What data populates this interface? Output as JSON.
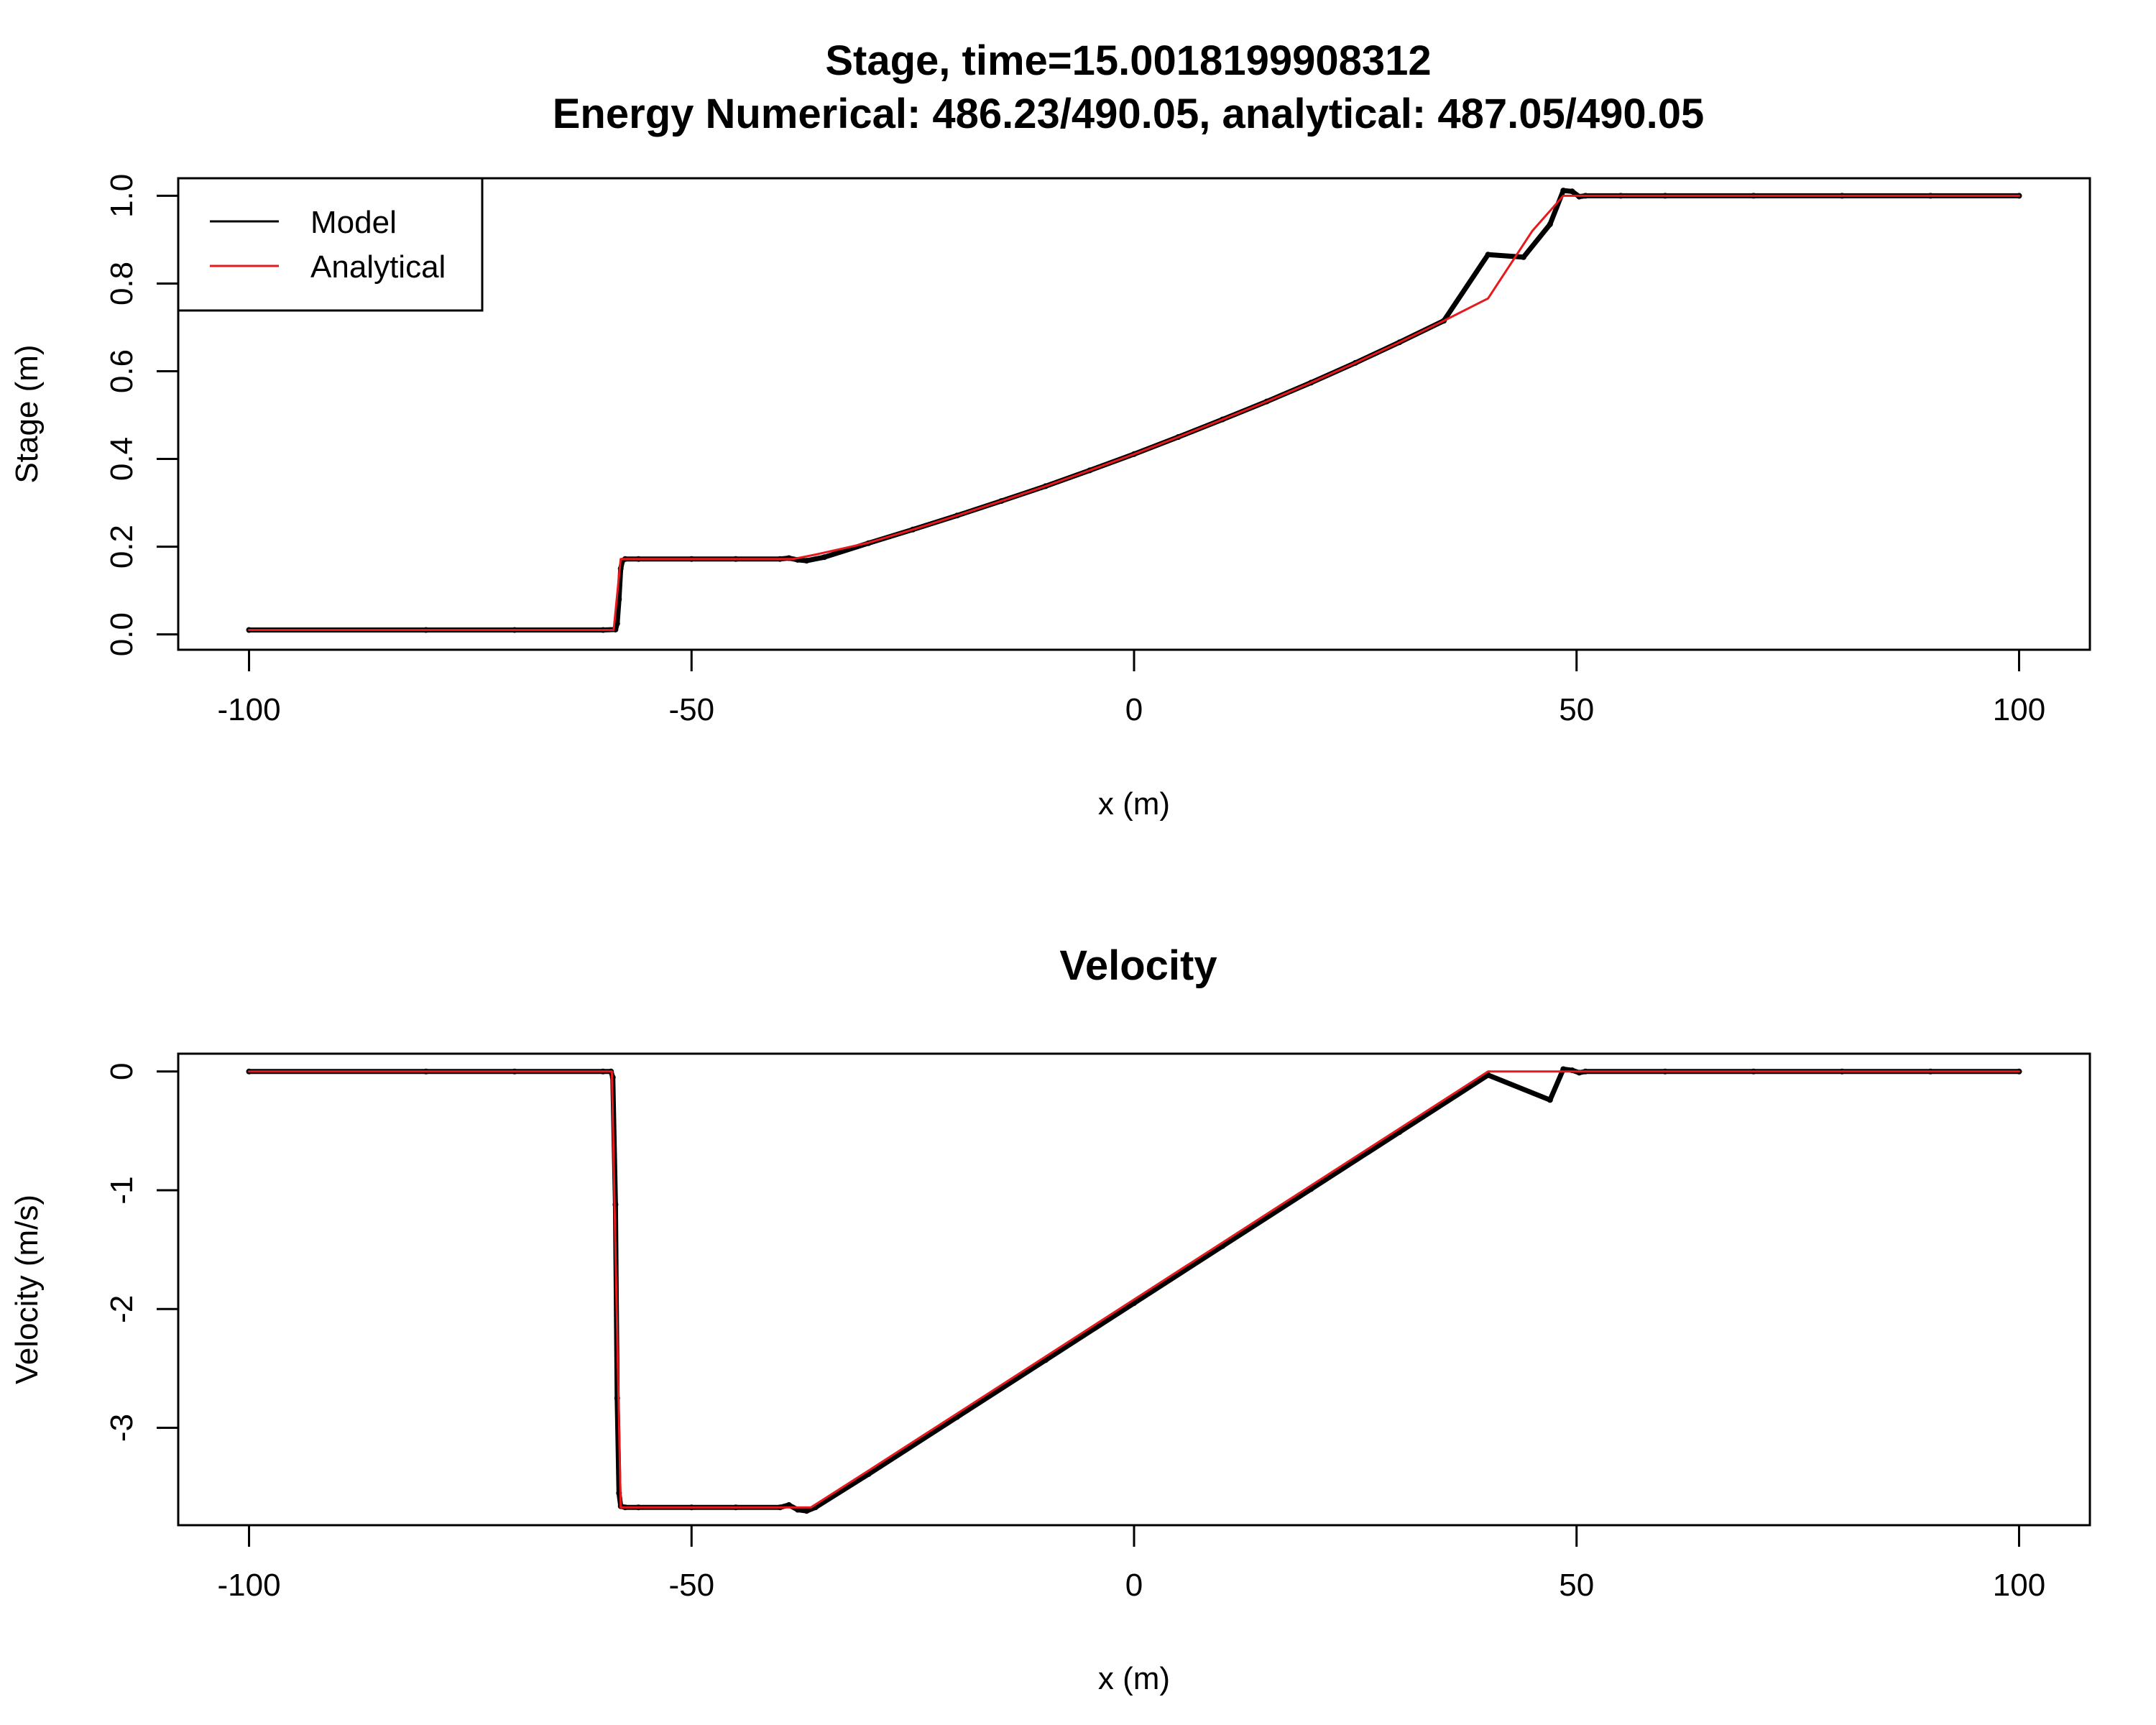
{
  "chart_data": [
    {
      "type": "line",
      "title": "Stage, time=15.0018199908312",
      "subtitle": "Energy Numerical: 486.23/490.05, analytical: 487.05/490.05",
      "xlabel": "x (m)",
      "ylabel": "Stage (m)",
      "xlim": [
        -108,
        108
      ],
      "ylim": [
        -0.035,
        1.04
      ],
      "xticks": [
        -100,
        -50,
        0,
        50,
        100
      ],
      "xtick_labels": [
        "-100",
        "-50",
        "0",
        "50",
        "100"
      ],
      "yticks": [
        0.0,
        0.2,
        0.4,
        0.6,
        0.8,
        1.0
      ],
      "ytick_labels": [
        "0.0",
        "0.2",
        "0.4",
        "0.6",
        "0.8",
        "1.0"
      ],
      "grid": false,
      "legend": {
        "position": "top-left",
        "entries": [
          {
            "label": "Model",
            "color": "#000000"
          },
          {
            "label": "Analytical",
            "color": "#e8191c"
          }
        ]
      },
      "series": [
        {
          "name": "Model",
          "color": "#000000",
          "x": [
            -100,
            -80,
            -70,
            -60,
            -58.6,
            -58.4,
            -58.2,
            -58.0,
            -57.8,
            -57.5,
            -56,
            -50,
            -45,
            -40,
            -39,
            -38,
            -37,
            -35,
            -30,
            -25,
            -20,
            -15,
            -10,
            -5,
            0,
            5,
            10,
            15,
            20,
            25,
            30,
            35,
            40,
            44,
            47,
            48.5,
            49.5,
            50.3,
            51,
            55,
            60,
            70,
            80,
            90,
            100
          ],
          "y": [
            0.01,
            0.01,
            0.01,
            0.01,
            0.011,
            0.025,
            0.08,
            0.15,
            0.168,
            0.172,
            0.172,
            0.172,
            0.172,
            0.172,
            0.174,
            0.17,
            0.168,
            0.176,
            0.208,
            0.239,
            0.271,
            0.304,
            0.338,
            0.374,
            0.411,
            0.45,
            0.49,
            0.531,
            0.574,
            0.619,
            0.666,
            0.715,
            0.866,
            0.86,
            0.935,
            1.012,
            1.01,
            0.998,
            1.0,
            1.0,
            1.0,
            1.0,
            1.0,
            1.0,
            1.0
          ]
        },
        {
          "name": "Analytical",
          "color": "#e8191c",
          "x": [
            -100,
            -80,
            -70,
            -60,
            -58.8,
            -58.0,
            -57.6,
            -56,
            -50,
            -45,
            -40,
            -38.5,
            -36,
            -30,
            -25,
            -20,
            -15,
            -10,
            -5,
            0,
            5,
            10,
            15,
            20,
            25,
            30,
            35,
            40,
            45,
            48.5,
            50,
            60,
            70,
            80,
            90,
            100
          ],
          "y": [
            0.01,
            0.01,
            0.01,
            0.01,
            0.01,
            0.172,
            0.172,
            0.172,
            0.172,
            0.172,
            0.172,
            0.172,
            0.182,
            0.209,
            0.239,
            0.271,
            0.304,
            0.338,
            0.374,
            0.411,
            0.45,
            0.49,
            0.531,
            0.574,
            0.619,
            0.666,
            0.715,
            0.766,
            0.92,
            1.0,
            1.0,
            1.0,
            1.0,
            1.0,
            1.0,
            1.0
          ]
        }
      ]
    },
    {
      "type": "line",
      "title": "Velocity",
      "xlabel": "x (m)",
      "ylabel": "Velocity (m/s)",
      "xlim": [
        -108,
        108
      ],
      "ylim": [
        -3.82,
        0.15
      ],
      "xticks": [
        -100,
        -50,
        0,
        50,
        100
      ],
      "xtick_labels": [
        "-100",
        "-50",
        "0",
        "50",
        "100"
      ],
      "yticks": [
        0,
        -1,
        -2,
        -3
      ],
      "ytick_labels": [
        "0",
        "-1",
        "-2",
        "-3"
      ],
      "grid": false,
      "series": [
        {
          "name": "Model",
          "color": "#000000",
          "x": [
            -100,
            -80,
            -70,
            -60,
            -59.1,
            -58.9,
            -58.6,
            -58.4,
            -58.2,
            -58.0,
            -57.5,
            -56,
            -50,
            -45,
            -40,
            -39,
            -38,
            -37,
            -36,
            -30,
            -20,
            -10,
            0,
            10,
            20,
            30,
            40,
            47,
            48.5,
            49.5,
            50.3,
            51,
            60,
            70,
            80,
            90,
            100
          ],
          "y": [
            0.0,
            0.0,
            0.0,
            0.0,
            0.0,
            -0.05,
            -1.12,
            -2.75,
            -3.55,
            -3.66,
            -3.67,
            -3.67,
            -3.67,
            -3.67,
            -3.67,
            -3.65,
            -3.69,
            -3.7,
            -3.67,
            -3.39,
            -2.91,
            -2.43,
            -1.95,
            -1.47,
            -0.99,
            -0.51,
            -0.03,
            -0.24,
            0.02,
            0.01,
            -0.01,
            0.0,
            0.0,
            0.0,
            0.0,
            0.0,
            0.0
          ]
        },
        {
          "name": "Analytical",
          "color": "#e8191c",
          "x": [
            -100,
            -80,
            -70,
            -60,
            -59.0,
            -58.0,
            -56,
            -50,
            -45,
            -40,
            -36.5,
            -30,
            -20,
            -10,
            0,
            10,
            20,
            30,
            40,
            48.5,
            50,
            60,
            70,
            80,
            90,
            100
          ],
          "y": [
            0.0,
            0.0,
            0.0,
            0.0,
            0.0,
            -3.67,
            -3.67,
            -3.67,
            -3.67,
            -3.67,
            -3.67,
            -3.36,
            -2.88,
            -2.4,
            -1.92,
            -1.44,
            -0.96,
            -0.48,
            0.0,
            0.0,
            0.0,
            0.0,
            0.0,
            0.0,
            0.0,
            0.0
          ]
        }
      ]
    }
  ]
}
